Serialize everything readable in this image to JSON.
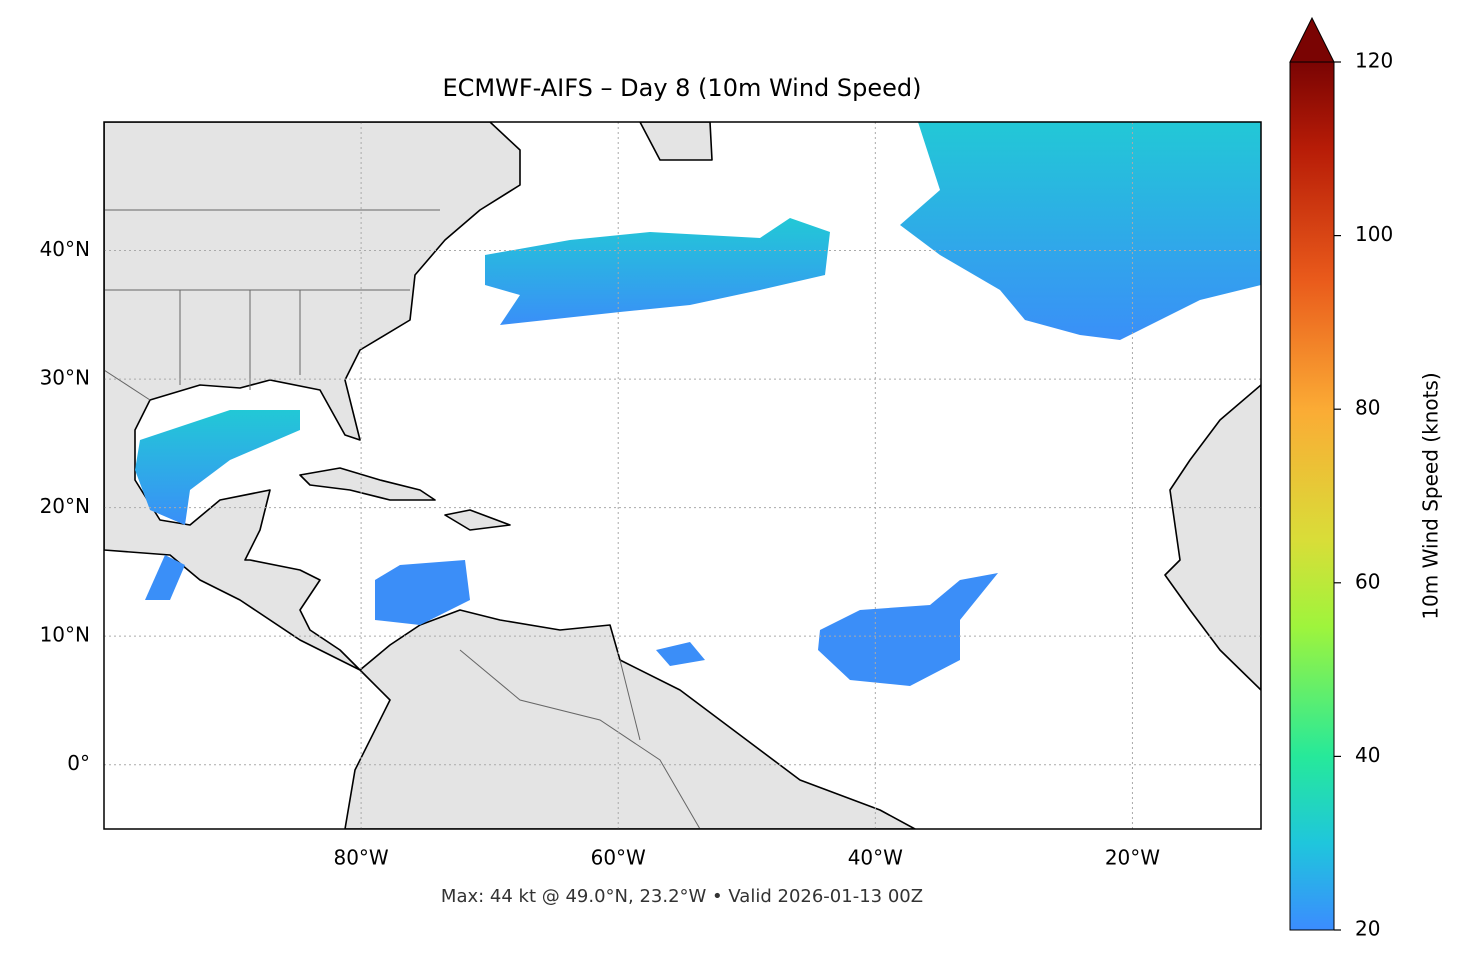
{
  "chart_data": {
    "type": "map",
    "title": "ECMWF-AIFS – Day 8 (10m Wind Speed)",
    "xlim": [
      -100,
      -10
    ],
    "ylim": [
      -5,
      50
    ],
    "xticks": [
      {
        "value": -80,
        "label": "80°W"
      },
      {
        "value": -60,
        "label": "60°W"
      },
      {
        "value": -40,
        "label": "40°W"
      },
      {
        "value": -20,
        "label": "20°W"
      }
    ],
    "yticks": [
      {
        "value": 0,
        "label": "0°"
      },
      {
        "value": 10,
        "label": "10°N"
      },
      {
        "value": 20,
        "label": "20°N"
      },
      {
        "value": 30,
        "label": "30°N"
      },
      {
        "value": 40,
        "label": "40°N"
      }
    ],
    "grid": true,
    "colorbar": {
      "label": "10m Wind Speed (knots)",
      "lim": [
        20,
        120
      ],
      "ticks": [
        20,
        40,
        60,
        80,
        100,
        120
      ]
    },
    "footer": "Max: 44 kt @ 49.0°N, 23.2°W • Valid 2026-01-13 00Z"
  }
}
